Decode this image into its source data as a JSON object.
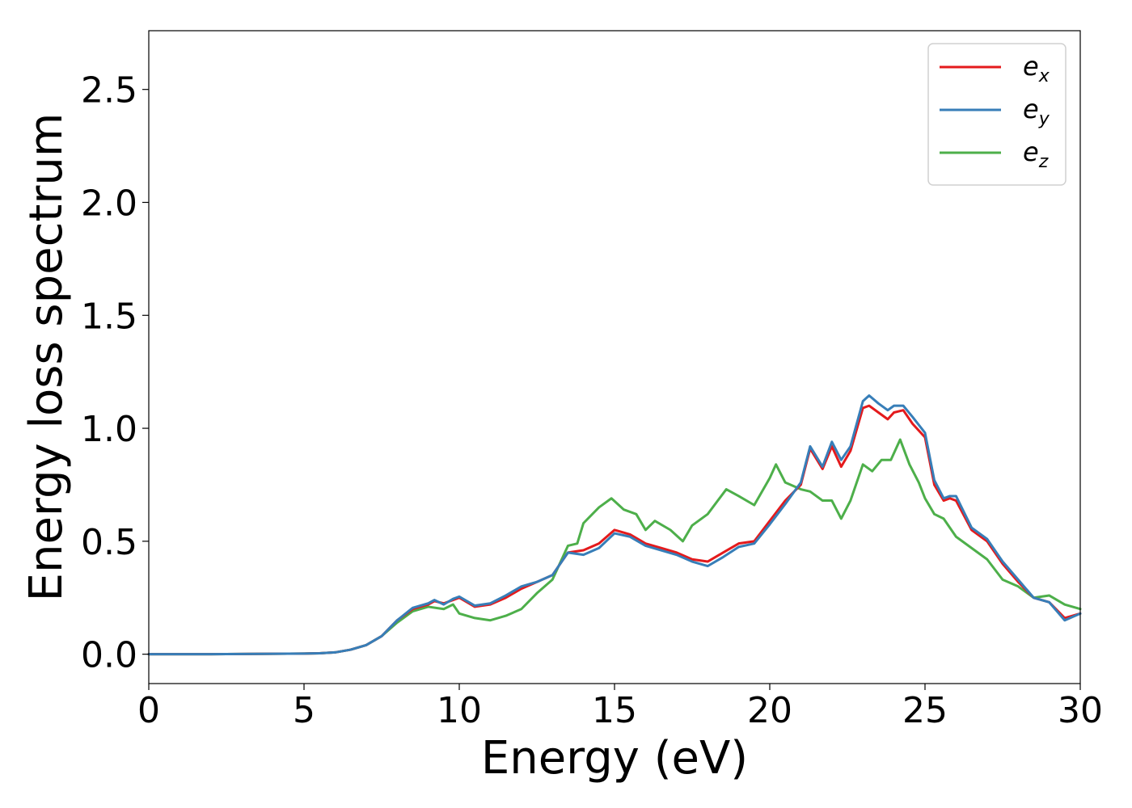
{
  "chart_data": {
    "type": "line",
    "xlabel": "Energy (eV)",
    "ylabel": "Energy loss spectrum",
    "xlim": [
      0,
      30
    ],
    "ylim": [
      -0.13,
      2.76
    ],
    "xticks": [
      0,
      5,
      10,
      15,
      20,
      25,
      30
    ],
    "yticks": [
      0.0,
      0.5,
      1.0,
      1.5,
      2.0,
      2.5
    ],
    "xtick_labels": [
      "0",
      "5",
      "10",
      "15",
      "20",
      "25",
      "30"
    ],
    "ytick_labels": [
      "0.0",
      "0.5",
      "1.0",
      "1.5",
      "2.0",
      "2.5"
    ],
    "grid": false,
    "legend_position": "top-right",
    "series": [
      {
        "name": "e",
        "subscript": "x",
        "color": "#e41a1c",
        "x": [
          0,
          2,
          4,
          5,
          5.5,
          6,
          6.5,
          7,
          7.5,
          8,
          8.5,
          9,
          9.2,
          9.5,
          9.8,
          10,
          10.5,
          11,
          11.5,
          12,
          12.5,
          13,
          13.5,
          14,
          14.5,
          15,
          15.5,
          16,
          16.5,
          17,
          17.5,
          18,
          18.5,
          19,
          19.5,
          20,
          20.5,
          21,
          21.3,
          21.7,
          22,
          22.3,
          22.6,
          23,
          23.2,
          23.5,
          23.8,
          24,
          24.3,
          24.6,
          25,
          25.3,
          25.6,
          25.8,
          26,
          26.5,
          27,
          27.5,
          28,
          28.5,
          29,
          29.5,
          30
        ],
        "y": [
          0.0,
          0.0,
          0.002,
          0.003,
          0.004,
          0.008,
          0.02,
          0.04,
          0.08,
          0.15,
          0.2,
          0.22,
          0.235,
          0.225,
          0.24,
          0.25,
          0.21,
          0.22,
          0.25,
          0.29,
          0.32,
          0.35,
          0.45,
          0.46,
          0.49,
          0.55,
          0.53,
          0.49,
          0.47,
          0.45,
          0.42,
          0.41,
          0.45,
          0.49,
          0.5,
          0.59,
          0.68,
          0.75,
          0.91,
          0.82,
          0.92,
          0.83,
          0.9,
          1.09,
          1.1,
          1.07,
          1.04,
          1.07,
          1.08,
          1.02,
          0.96,
          0.75,
          0.68,
          0.69,
          0.68,
          0.55,
          0.5,
          0.4,
          0.32,
          0.25,
          0.23,
          0.16,
          0.18
        ]
      },
      {
        "name": "e",
        "subscript": "y",
        "color": "#377eb8",
        "x": [
          0,
          2,
          4,
          5,
          5.5,
          6,
          6.5,
          7,
          7.5,
          8,
          8.5,
          9,
          9.2,
          9.5,
          9.8,
          10,
          10.5,
          11,
          11.5,
          12,
          12.5,
          13,
          13.5,
          14,
          14.5,
          15,
          15.5,
          16,
          16.5,
          17,
          17.5,
          18,
          18.5,
          19,
          19.5,
          20,
          20.5,
          21,
          21.3,
          21.7,
          22,
          22.3,
          22.6,
          23,
          23.2,
          23.5,
          23.8,
          24,
          24.3,
          24.6,
          25,
          25.3,
          25.6,
          25.8,
          26,
          26.5,
          27,
          27.5,
          28,
          28.5,
          29,
          29.5,
          30
        ],
        "y": [
          0.0,
          0.0,
          0.002,
          0.003,
          0.004,
          0.008,
          0.02,
          0.04,
          0.08,
          0.15,
          0.205,
          0.225,
          0.24,
          0.22,
          0.245,
          0.255,
          0.215,
          0.225,
          0.26,
          0.3,
          0.32,
          0.35,
          0.45,
          0.44,
          0.47,
          0.535,
          0.52,
          0.48,
          0.46,
          0.44,
          0.41,
          0.39,
          0.43,
          0.475,
          0.49,
          0.575,
          0.665,
          0.76,
          0.92,
          0.83,
          0.94,
          0.86,
          0.92,
          1.12,
          1.145,
          1.11,
          1.08,
          1.1,
          1.1,
          1.05,
          0.98,
          0.77,
          0.69,
          0.7,
          0.7,
          0.56,
          0.51,
          0.41,
          0.33,
          0.25,
          0.23,
          0.15,
          0.18
        ]
      },
      {
        "name": "e",
        "subscript": "z",
        "color": "#4daf4a",
        "x": [
          0,
          2,
          4,
          5,
          5.5,
          6,
          6.5,
          7,
          7.5,
          8,
          8.5,
          9,
          9.5,
          9.8,
          10,
          10.5,
          11,
          11.5,
          12,
          12.5,
          13,
          13.5,
          13.8,
          14,
          14.5,
          14.9,
          15.3,
          15.7,
          16,
          16.3,
          16.8,
          17.2,
          17.5,
          18,
          18.6,
          19,
          19.5,
          20,
          20.2,
          20.5,
          21,
          21.3,
          21.7,
          22,
          22.3,
          22.6,
          23,
          23.3,
          23.6,
          23.9,
          24.2,
          24.5,
          24.8,
          25,
          25.3,
          25.6,
          26,
          26.5,
          27,
          27.5,
          28,
          28.5,
          29,
          29.5,
          30
        ],
        "y": [
          0.0,
          0.0,
          0.002,
          0.003,
          0.004,
          0.008,
          0.02,
          0.04,
          0.08,
          0.14,
          0.19,
          0.21,
          0.2,
          0.22,
          0.18,
          0.16,
          0.15,
          0.17,
          0.2,
          0.27,
          0.33,
          0.48,
          0.49,
          0.58,
          0.65,
          0.69,
          0.64,
          0.62,
          0.55,
          0.59,
          0.55,
          0.5,
          0.57,
          0.62,
          0.73,
          0.7,
          0.66,
          0.78,
          0.84,
          0.76,
          0.73,
          0.72,
          0.68,
          0.68,
          0.6,
          0.68,
          0.84,
          0.81,
          0.86,
          0.86,
          0.95,
          0.84,
          0.76,
          0.69,
          0.62,
          0.6,
          0.52,
          0.47,
          0.42,
          0.33,
          0.3,
          0.25,
          0.26,
          0.22,
          0.2
        ]
      }
    ]
  }
}
